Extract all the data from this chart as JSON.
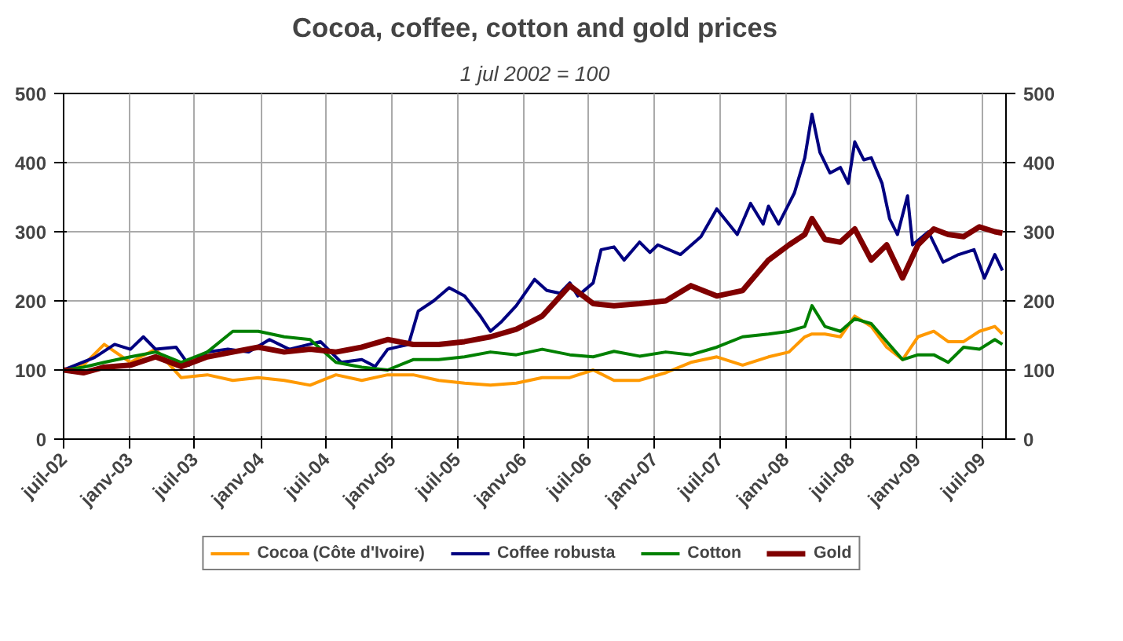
{
  "chart_data": {
    "type": "line",
    "title": "Cocoa, coffee, cotton and gold prices",
    "subtitle": "1 jul 2002 = 100",
    "x": [
      "2002-07-01",
      "2002-08-25",
      "2002-10-22",
      "2003-01-03",
      "2003-03-14",
      "2003-05-24",
      "2003-08-05",
      "2003-10-15",
      "2003-12-25",
      "2004-03-06",
      "2004-05-17",
      "2004-07-28",
      "2004-10-08",
      "2004-12-19",
      "2005-02-28",
      "2005-05-10",
      "2005-07-21",
      "2005-10-01",
      "2005-12-12",
      "2006-02-22",
      "2006-05-10",
      "2006-07-14",
      "2006-09-10",
      "2006-11-20",
      "2007-02-01",
      "2007-04-12",
      "2007-06-23",
      "2007-09-03",
      "2007-11-14",
      "2008-01-10",
      "2008-02-23",
      "2008-03-14",
      "2008-04-19",
      "2008-06-01",
      "2008-07-11",
      "2008-08-26",
      "2008-10-08",
      "2008-11-21",
      "2009-01-03",
      "2009-02-16",
      "2009-03-28",
      "2009-05-10",
      "2009-06-23",
      "2009-08-05",
      "2009-08-26"
    ],
    "series": [
      {
        "name": "Cocoa (Côte d'Ivoire)",
        "color": "#ff9900",
        "values": [
          100,
          107,
          137,
          111,
          130,
          89,
          93,
          85,
          89,
          85,
          78,
          93,
          85,
          93,
          93,
          85,
          81,
          78,
          81,
          89,
          89,
          100,
          85,
          85,
          96,
          111,
          119,
          107,
          119,
          126,
          148,
          152,
          152,
          148,
          178,
          163,
          133,
          115,
          148,
          156,
          141,
          141,
          156,
          163,
          152
        ]
      },
      {
        "name": "Coffee robusta",
        "color": "#000080",
        "x": [
          "2002-07-01",
          "2002-09-25",
          "2002-11-20",
          "2003-01-03",
          "2003-02-08",
          "2003-03-14",
          "2003-05-10",
          "2003-06-15",
          "2003-08-05",
          "2003-10-01",
          "2003-11-28",
          "2004-01-25",
          "2004-03-20",
          "2004-06-15",
          "2004-08-12",
          "2004-10-08",
          "2004-11-14",
          "2004-12-19",
          "2005-02-15",
          "2005-03-14",
          "2005-04-26",
          "2005-06-08",
          "2005-07-21",
          "2005-09-03",
          "2005-10-01",
          "2005-11-01",
          "2005-12-12",
          "2006-02-01",
          "2006-03-07",
          "2006-04-12",
          "2006-05-10",
          "2006-06-01",
          "2006-07-14",
          "2006-08-05",
          "2006-09-10",
          "2006-10-08",
          "2006-11-20",
          "2006-12-19",
          "2007-01-10",
          "2007-03-14",
          "2007-05-10",
          "2007-06-23",
          "2007-08-19",
          "2007-09-25",
          "2007-10-30",
          "2007-11-14",
          "2007-12-12",
          "2008-01-25",
          "2008-02-23",
          "2008-03-14",
          "2008-04-05",
          "2008-05-03",
          "2008-06-01",
          "2008-06-23",
          "2008-07-11",
          "2008-08-05",
          "2008-08-26",
          "2008-09-25",
          "2008-10-16",
          "2008-11-07",
          "2008-12-05",
          "2008-12-19",
          "2009-02-01",
          "2009-03-14",
          "2009-04-26",
          "2009-06-08",
          "2009-07-07",
          "2009-08-05",
          "2009-08-26"
        ],
        "values": [
          100,
          118,
          137,
          130,
          148,
          130,
          133,
          107,
          126,
          130,
          126,
          144,
          130,
          141,
          111,
          115,
          105,
          130,
          137,
          185,
          200,
          219,
          207,
          178,
          156,
          170,
          193,
          231,
          215,
          211,
          226,
          207,
          226,
          274,
          278,
          259,
          285,
          270,
          281,
          267,
          293,
          333,
          296,
          341,
          311,
          337,
          311,
          356,
          407,
          470,
          415,
          385,
          393,
          370,
          430,
          404,
          407,
          370,
          319,
          296,
          352,
          281,
          300,
          256,
          267,
          274,
          233,
          267,
          244
        ]
      },
      {
        "name": "Cotton",
        "color": "#008000",
        "values": [
          100,
          104,
          111,
          119,
          126,
          111,
          126,
          156,
          156,
          148,
          144,
          111,
          104,
          100,
          115,
          115,
          119,
          126,
          122,
          130,
          122,
          119,
          127,
          120,
          126,
          122,
          133,
          148,
          152,
          156,
          163,
          193,
          163,
          156,
          174,
          167,
          141,
          115,
          122,
          122,
          111,
          133,
          130,
          144,
          137
        ]
      },
      {
        "name": "Gold",
        "color": "#800000",
        "values": [
          100,
          96,
          104,
          107,
          119,
          105,
          119,
          126,
          133,
          126,
          130,
          126,
          133,
          144,
          137,
          137,
          141,
          148,
          159,
          178,
          222,
          196,
          193,
          196,
          200,
          222,
          207,
          215,
          259,
          281,
          296,
          319,
          289,
          285,
          304,
          259,
          281,
          233,
          281,
          304,
          296,
          293,
          307,
          300,
          298
        ]
      }
    ],
    "xlim": [
      "2002-07-01",
      "2009-09-05"
    ],
    "xticks": [
      {
        "value": "2002-07-01",
        "label": "juil-02"
      },
      {
        "value": "2003-01-01",
        "label": "janv-03"
      },
      {
        "value": "2003-07-01",
        "label": "juil-03"
      },
      {
        "value": "2004-01-01",
        "label": "janv-04"
      },
      {
        "value": "2004-07-01",
        "label": "juil-04"
      },
      {
        "value": "2005-01-01",
        "label": "janv-05"
      },
      {
        "value": "2005-07-01",
        "label": "juil-05"
      },
      {
        "value": "2006-01-01",
        "label": "janv-06"
      },
      {
        "value": "2006-07-01",
        "label": "juil-06"
      },
      {
        "value": "2007-01-01",
        "label": "janv-07"
      },
      {
        "value": "2007-07-01",
        "label": "juil-07"
      },
      {
        "value": "2008-01-01",
        "label": "janv-08"
      },
      {
        "value": "2008-07-01",
        "label": "juil-08"
      },
      {
        "value": "2009-01-01",
        "label": "janv-09"
      },
      {
        "value": "2009-07-01",
        "label": "juil-09"
      }
    ],
    "ylim": [
      0,
      500
    ],
    "yticks": [
      0,
      100,
      200,
      300,
      400,
      500
    ],
    "y2lim": [
      0,
      500
    ],
    "y2ticks": [
      0,
      100,
      200,
      300,
      400,
      500
    ],
    "ref_lines": [
      {
        "axis": "y",
        "value": 100,
        "color": "#000000"
      }
    ],
    "grid": true,
    "legend": "bottom",
    "line_style": "solid",
    "marker": "none"
  }
}
